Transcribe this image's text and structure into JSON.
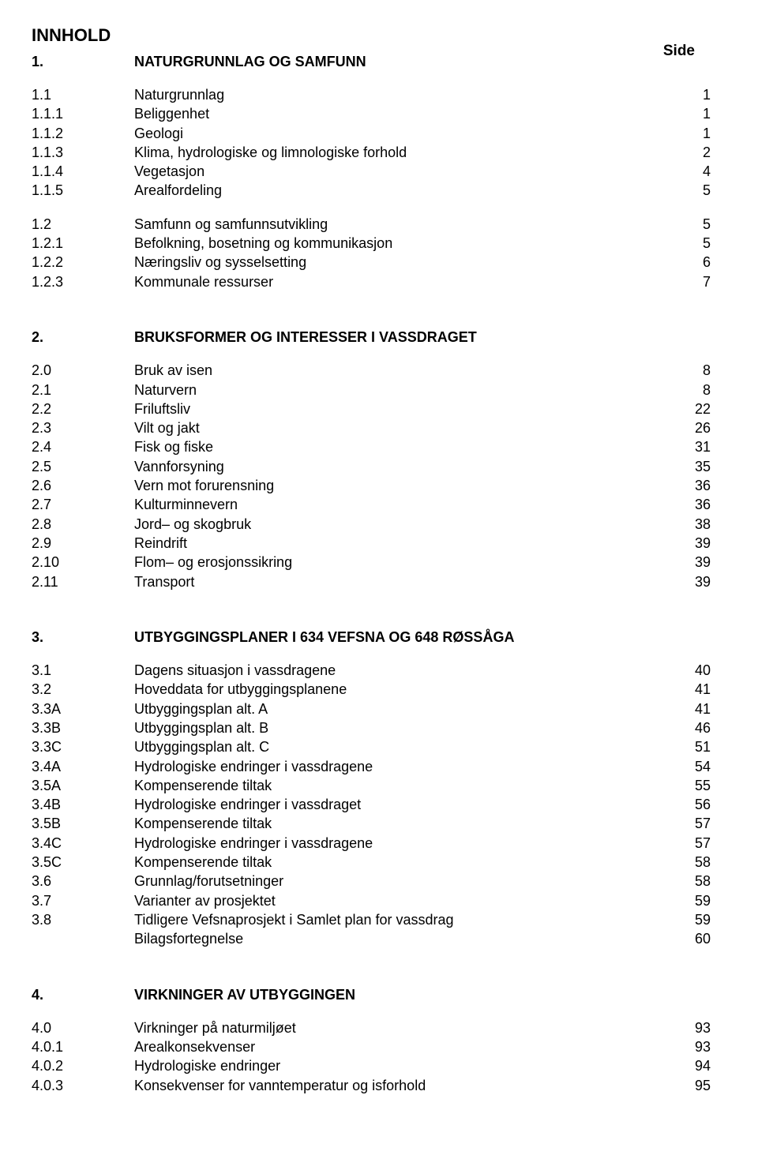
{
  "title": "INNHOLD",
  "pageLabel": "Side",
  "sections": [
    {
      "heading": {
        "num": "1.",
        "title": "NATURGRUNNLAG OG SAMFUNN",
        "page": ""
      },
      "groups": [
        [
          {
            "num": "1.1",
            "title": "Naturgrunnlag",
            "page": "1"
          },
          {
            "num": "1.1.1",
            "title": "Beliggenhet",
            "page": "1"
          },
          {
            "num": "1.1.2",
            "title": "Geologi",
            "page": "1"
          },
          {
            "num": "1.1.3",
            "title": "Klima, hydrologiske og limnologiske forhold",
            "page": "2"
          },
          {
            "num": "1.1.4",
            "title": "Vegetasjon",
            "page": "4"
          },
          {
            "num": "1.1.5",
            "title": "Arealfordeling",
            "page": "5"
          }
        ],
        [
          {
            "num": "1.2",
            "title": "Samfunn og samfunnsutvikling",
            "page": "5"
          },
          {
            "num": "1.2.1",
            "title": "Befolkning, bosetning og kommunikasjon",
            "page": "5"
          },
          {
            "num": "1.2.2",
            "title": "Næringsliv og sysselsetting",
            "page": "6"
          },
          {
            "num": "1.2.3",
            "title": "Kommunale ressurser",
            "page": "7"
          }
        ]
      ]
    },
    {
      "heading": {
        "num": "2.",
        "title": "BRUKSFORMER OG INTERESSER I VASSDRAGET",
        "page": ""
      },
      "groups": [
        [
          {
            "num": "2.0",
            "title": "Bruk av isen",
            "page": "8"
          },
          {
            "num": "2.1",
            "title": "Naturvern",
            "page": "8"
          },
          {
            "num": "2.2",
            "title": "Friluftsliv",
            "page": "22"
          },
          {
            "num": "2.3",
            "title": "Vilt og jakt",
            "page": "26"
          },
          {
            "num": "2.4",
            "title": "Fisk og fiske",
            "page": "31"
          },
          {
            "num": "2.5",
            "title": "Vannforsyning",
            "page": "35"
          },
          {
            "num": "2.6",
            "title": "Vern mot forurensning",
            "page": "36"
          },
          {
            "num": "2.7",
            "title": "Kulturminnevern",
            "page": "36"
          },
          {
            "num": "2.8",
            "title": "Jord– og skogbruk",
            "page": "38"
          },
          {
            "num": "2.9",
            "title": "Reindrift",
            "page": "39"
          },
          {
            "num": "2.10",
            "title": "Flom– og erosjonssikring",
            "page": "39"
          },
          {
            "num": "2.11",
            "title": "Transport",
            "page": "39"
          }
        ]
      ]
    },
    {
      "heading": {
        "num": "3.",
        "title": "UTBYGGINGSPLANER I 634 VEFSNA OG 648 RØSSÅGA",
        "page": ""
      },
      "groups": [
        [
          {
            "num": "3.1",
            "title": "Dagens situasjon i vassdragene",
            "page": "40"
          },
          {
            "num": "3.2",
            "title": "Hoveddata for utbyggingsplanene",
            "page": "41"
          },
          {
            "num": "3.3A",
            "title": "Utbyggingsplan alt. A",
            "page": "41"
          },
          {
            "num": "3.3B",
            "title": "Utbyggingsplan alt. B",
            "page": "46"
          },
          {
            "num": "3.3C",
            "title": "Utbyggingsplan alt. C",
            "page": "51"
          },
          {
            "num": "3.4A",
            "title": "Hydrologiske endringer i vassdragene",
            "page": "54"
          },
          {
            "num": "3.5A",
            "title": "Kompenserende tiltak",
            "page": "55"
          },
          {
            "num": "3.4B",
            "title": "Hydrologiske endringer i vassdraget",
            "page": "56"
          },
          {
            "num": "3.5B",
            "title": "Kompenserende tiltak",
            "page": "57"
          },
          {
            "num": "3.4C",
            "title": "Hydrologiske endringer i vassdragene",
            "page": "57"
          },
          {
            "num": "3.5C",
            "title": "Kompenserende tiltak",
            "page": "58"
          },
          {
            "num": "3.6",
            "title": "Grunnlag/forutsetninger",
            "page": "58"
          },
          {
            "num": "3.7",
            "title": "Varianter av prosjektet",
            "page": "59"
          },
          {
            "num": "3.8",
            "title": "Tidligere Vefsnaprosjekt i Samlet plan for vassdrag",
            "page": "59"
          },
          {
            "num": "",
            "title": "Bilagsfortegnelse",
            "page": "60"
          }
        ]
      ]
    },
    {
      "heading": {
        "num": "4.",
        "title": "VIRKNINGER AV UTBYGGINGEN",
        "page": ""
      },
      "groups": [
        [
          {
            "num": "4.0",
            "title": "Virkninger på naturmiljøet",
            "page": "93"
          },
          {
            "num": "4.0.1",
            "title": "Arealkonsekvenser",
            "page": "93"
          },
          {
            "num": "4.0.2",
            "title": "Hydrologiske endringer",
            "page": "94"
          },
          {
            "num": "4.0.3",
            "title": "Konsekvenser for vanntemperatur og isforhold",
            "page": "95"
          }
        ]
      ]
    }
  ]
}
